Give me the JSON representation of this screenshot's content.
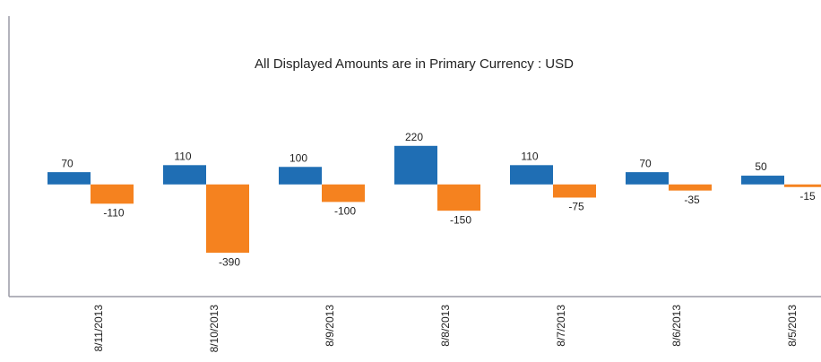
{
  "chart_data": {
    "type": "bar",
    "title": "All Displayed Amounts are in Primary Currency : USD",
    "categories": [
      "8/11/2013",
      "8/10/2013",
      "8/9/2013",
      "8/8/2013",
      "8/7/2013",
      "8/6/2013",
      "8/5/2013"
    ],
    "series": [
      {
        "color": "#1f6eb4",
        "values": [
          70,
          110,
          100,
          220,
          110,
          70,
          50
        ]
      },
      {
        "color": "#f5821f",
        "values": [
          -110,
          -390,
          -100,
          -150,
          -75,
          -35,
          -15
        ]
      }
    ],
    "ylim": [
      -640,
      950
    ]
  }
}
